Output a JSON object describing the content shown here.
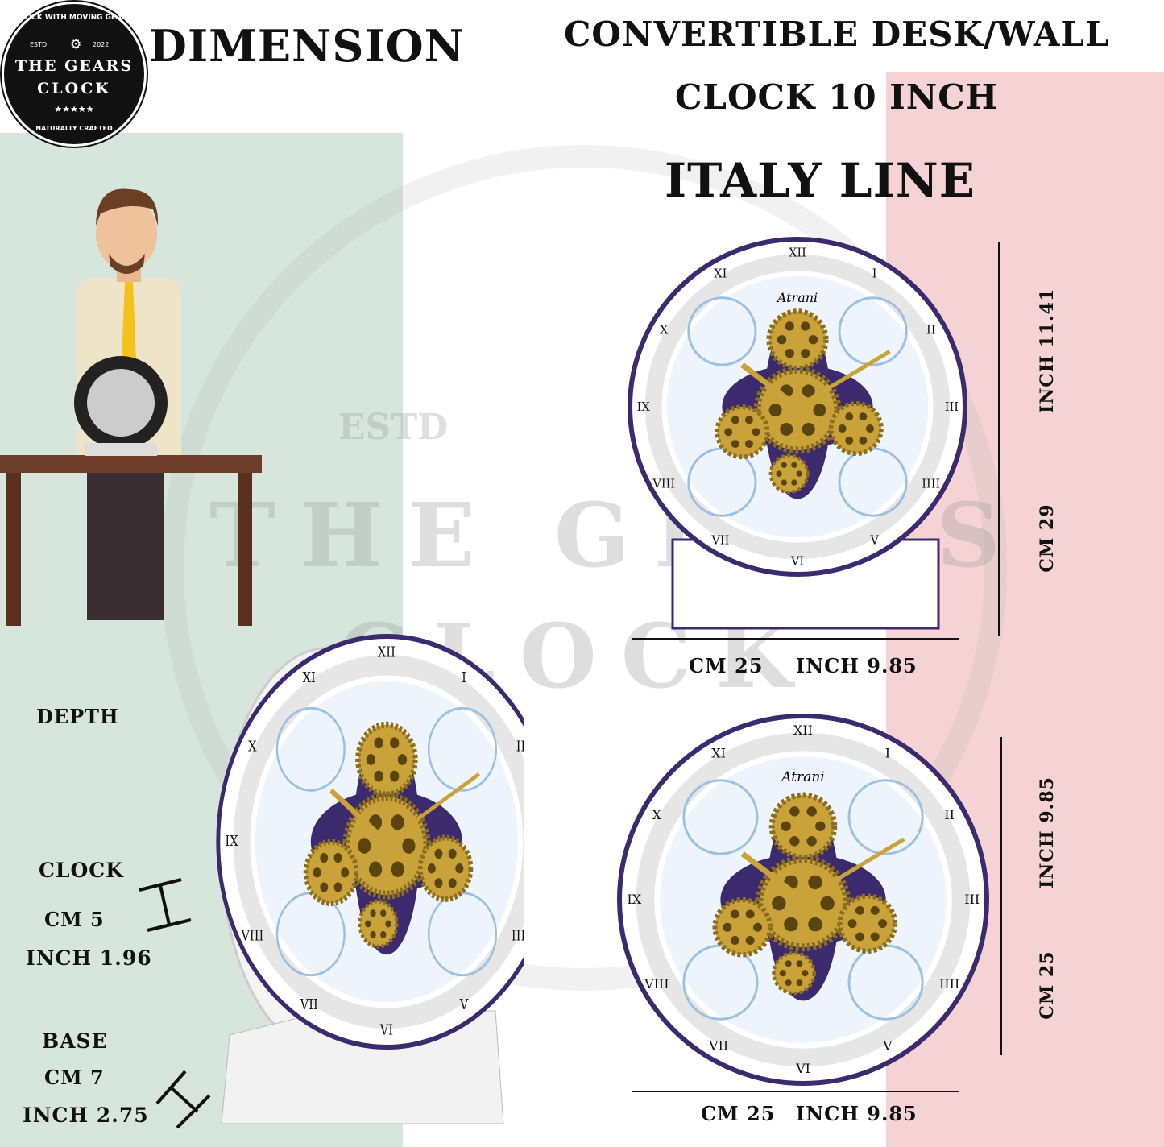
{
  "logo": {
    "ring_top": "CLOCK WITH MOVING GEARS",
    "estd": "ESTD",
    "year": "2022",
    "name_line1": "THE GEARS",
    "name_line2": "CLOCK",
    "stars": "★★★★★",
    "ring_bottom": "NATURALLY CRAFTED"
  },
  "heading": {
    "dimension": "DIMENSION",
    "title_line1": "CONVERTIBLE DESK/WALL",
    "title_line2": "CLOCK 10 INCH",
    "subtitle": "ITALY LINE"
  },
  "desk_clock": {
    "height_inch": "INCH 11.41",
    "height_cm": "CM 29",
    "width_cm": "CM 25",
    "width_inch": "INCH 9.85",
    "brand": "Atrani"
  },
  "wall_clock": {
    "height_inch": "INCH 9.85",
    "height_cm": "CM 25",
    "width_cm": "CM 25",
    "width_inch": "INCH 9.85",
    "brand": "Atrani"
  },
  "depth": {
    "label": "DEPTH",
    "clock_label": "CLOCK",
    "clock_cm": "CM 5",
    "clock_inch": "INCH 1.96",
    "base_label": "BASE",
    "base_cm": "CM 7",
    "base_inch": "INCH 2.75"
  },
  "colors": {
    "green_band": "#d6e6dc",
    "pink_band": "#f5d3d4",
    "gold": "#c9a23a",
    "purple": "#3b2a6e"
  }
}
